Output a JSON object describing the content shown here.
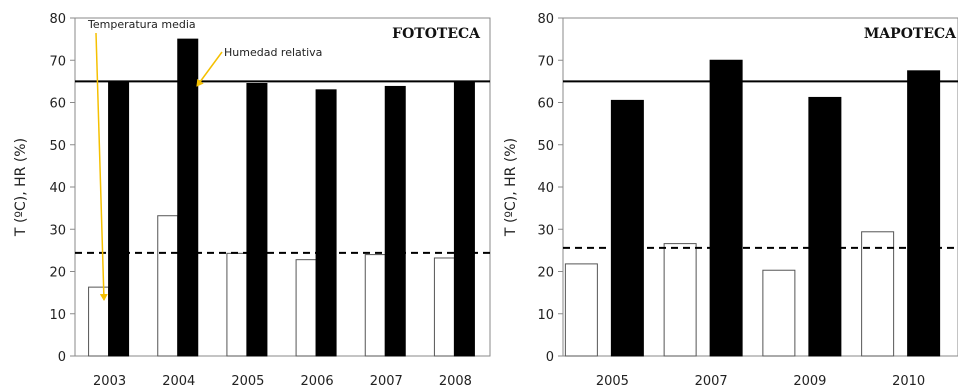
{
  "chart_data": [
    {
      "type": "bar",
      "title": "FOTOTECA",
      "ylabel": "T (ºC), HR (%)",
      "ylim": [
        0,
        80
      ],
      "yticks": [
        0,
        10,
        20,
        30,
        40,
        50,
        60,
        70,
        80
      ],
      "categories": [
        "2003",
        "2004",
        "2005",
        "2006",
        "2007",
        "2008"
      ],
      "series": [
        {
          "name": "Temperatura media",
          "fill": "#ffffff",
          "values": [
            16.3,
            33.2,
            24.3,
            22.8,
            24.0,
            23.2
          ]
        },
        {
          "name": "Humedad relativa",
          "fill": "#000000",
          "values": [
            65.0,
            75.0,
            64.5,
            63.0,
            63.8,
            65.0
          ]
        }
      ],
      "reference_lines": [
        {
          "style": "solid",
          "value": 65
        },
        {
          "style": "dashed",
          "value": 24.4
        }
      ],
      "annotations": [
        {
          "text": "Temperatura media",
          "arrow_color": "#f5c000"
        },
        {
          "text": "Humedad relativa",
          "arrow_color": "#f5c000"
        }
      ]
    },
    {
      "type": "bar",
      "title": "MAPOTECA",
      "ylabel": "T (ºC), HR (%)",
      "ylim": [
        0,
        80
      ],
      "yticks": [
        0,
        10,
        20,
        30,
        40,
        50,
        60,
        70,
        80
      ],
      "categories": [
        "2005",
        "2007",
        "2009",
        "2010"
      ],
      "series": [
        {
          "fill": "#ffffff",
          "values": [
            21.8,
            26.6,
            20.3,
            29.4
          ]
        },
        {
          "fill": "#000000",
          "values": [
            60.5,
            70.0,
            61.2,
            67.5
          ]
        }
      ],
      "reference_lines": [
        {
          "style": "solid",
          "value": 65
        },
        {
          "style": "dashed",
          "value": 25.6
        }
      ]
    }
  ]
}
